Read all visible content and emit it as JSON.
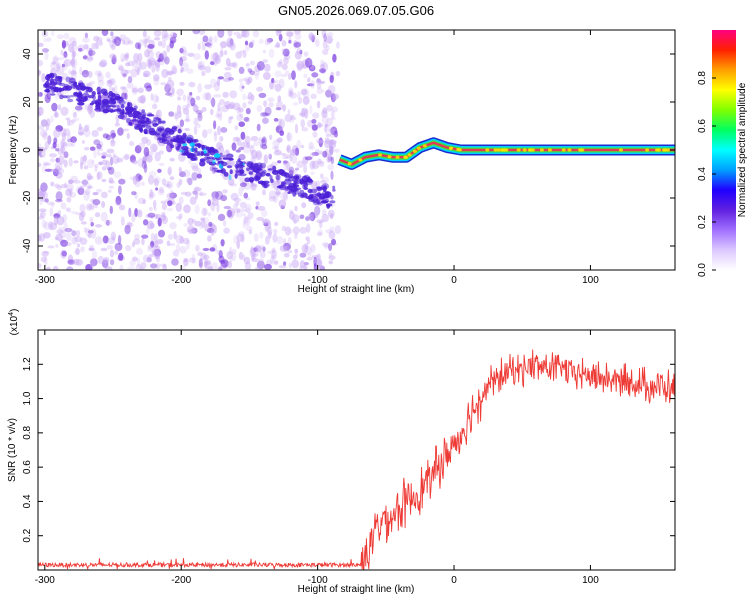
{
  "title": "GN05.2026.069.07.05.G06",
  "colors": {
    "snr_line": "#ee3a35",
    "spectro_cloud": "#c9a8f5",
    "spectro_dot": "#7a3ce0",
    "track_dark": "#4b1fd6",
    "carrier_core": "#e03a55",
    "carrier_halo": "#44e23c"
  },
  "chart_data": [
    {
      "type": "heatmap",
      "name": "spectrogram",
      "xlabel": "Height of straight line (km)",
      "ylabel": "Frequency (Hz)",
      "xlim": [
        -305,
        162
      ],
      "ylim": [
        -50,
        50
      ],
      "xticks": [
        -300,
        -200,
        -100,
        0,
        100
      ],
      "xtick_labels": [
        "-300",
        "-200",
        "-100",
        "0",
        "100"
      ],
      "yticks": [
        -40,
        -20,
        0,
        20,
        40
      ],
      "ytick_labels": [
        "-40",
        "-20",
        "0",
        "20",
        "40"
      ],
      "noise_region_x": [
        -305,
        -85
      ],
      "track": [
        {
          "x": -300,
          "y": 28
        },
        {
          "x": -270,
          "y": 23
        },
        {
          "x": -250,
          "y": 19
        },
        {
          "x": -220,
          "y": 10
        },
        {
          "x": -190,
          "y": 0
        },
        {
          "x": -160,
          "y": -8
        },
        {
          "x": -130,
          "y": -12
        },
        {
          "x": -110,
          "y": -15
        },
        {
          "x": -90,
          "y": -20
        }
      ],
      "carrier": [
        {
          "x": -84,
          "y": -4
        },
        {
          "x": -75,
          "y": -6
        },
        {
          "x": -65,
          "y": -3
        },
        {
          "x": -55,
          "y": -2
        },
        {
          "x": -45,
          "y": -3
        },
        {
          "x": -35,
          "y": -3
        },
        {
          "x": -25,
          "y": 1
        },
        {
          "x": -15,
          "y": 3
        },
        {
          "x": -5,
          "y": 1
        },
        {
          "x": 5,
          "y": 0
        },
        {
          "x": 162,
          "y": 0
        }
      ],
      "colorbar": {
        "label": "Normalized spectral amplitude",
        "range": [
          0.0,
          1.0
        ],
        "ticks": [
          0.0,
          0.2,
          0.4,
          0.6,
          0.8
        ],
        "tick_labels": [
          "0.0",
          "0.2",
          "0.4",
          "0.6",
          "0.8"
        ],
        "colors": [
          "#ffffff",
          "#dcc8ff",
          "#a070ff",
          "#6020e0",
          "#2000ff",
          "#00a0ff",
          "#00ffff",
          "#00ff60",
          "#80ff00",
          "#ffff00",
          "#ffa000",
          "#ff2000",
          "#ff0080"
        ]
      }
    },
    {
      "type": "line",
      "name": "snr",
      "xlabel": "Height of straight line (km)",
      "ylabel": "SNR (10 * v/v)",
      "y_multiplier": "(x10",
      "y_multiplier_exp": "4",
      "y_multiplier_close": ")",
      "xlim": [
        -305,
        162
      ],
      "ylim": [
        0,
        1.4
      ],
      "xticks": [
        -300,
        -200,
        -100,
        0,
        100
      ],
      "xtick_labels": [
        "-300",
        "-200",
        "-100",
        "0",
        "100"
      ],
      "yticks": [
        0.2,
        0.4,
        0.6,
        0.8,
        1.0,
        1.2
      ],
      "ytick_labels": [
        "0.2",
        "0.4",
        "0.6",
        "0.8",
        "1.0",
        "1.2"
      ],
      "series": [
        {
          "name": "SNR",
          "points": [
            {
              "x": -305,
              "y": 0.03
            },
            {
              "x": -68,
              "y": 0.03
            },
            {
              "x": -62,
              "y": 0.14
            },
            {
              "x": -55,
              "y": 0.28
            },
            {
              "x": -45,
              "y": 0.32
            },
            {
              "x": -35,
              "y": 0.4
            },
            {
              "x": -25,
              "y": 0.46
            },
            {
              "x": -15,
              "y": 0.56
            },
            {
              "x": -5,
              "y": 0.67
            },
            {
              "x": 5,
              "y": 0.8
            },
            {
              "x": 15,
              "y": 0.95
            },
            {
              "x": 25,
              "y": 1.08
            },
            {
              "x": 40,
              "y": 1.16
            },
            {
              "x": 60,
              "y": 1.19
            },
            {
              "x": 80,
              "y": 1.17
            },
            {
              "x": 100,
              "y": 1.13
            },
            {
              "x": 130,
              "y": 1.09
            },
            {
              "x": 162,
              "y": 1.06
            }
          ]
        }
      ]
    }
  ]
}
